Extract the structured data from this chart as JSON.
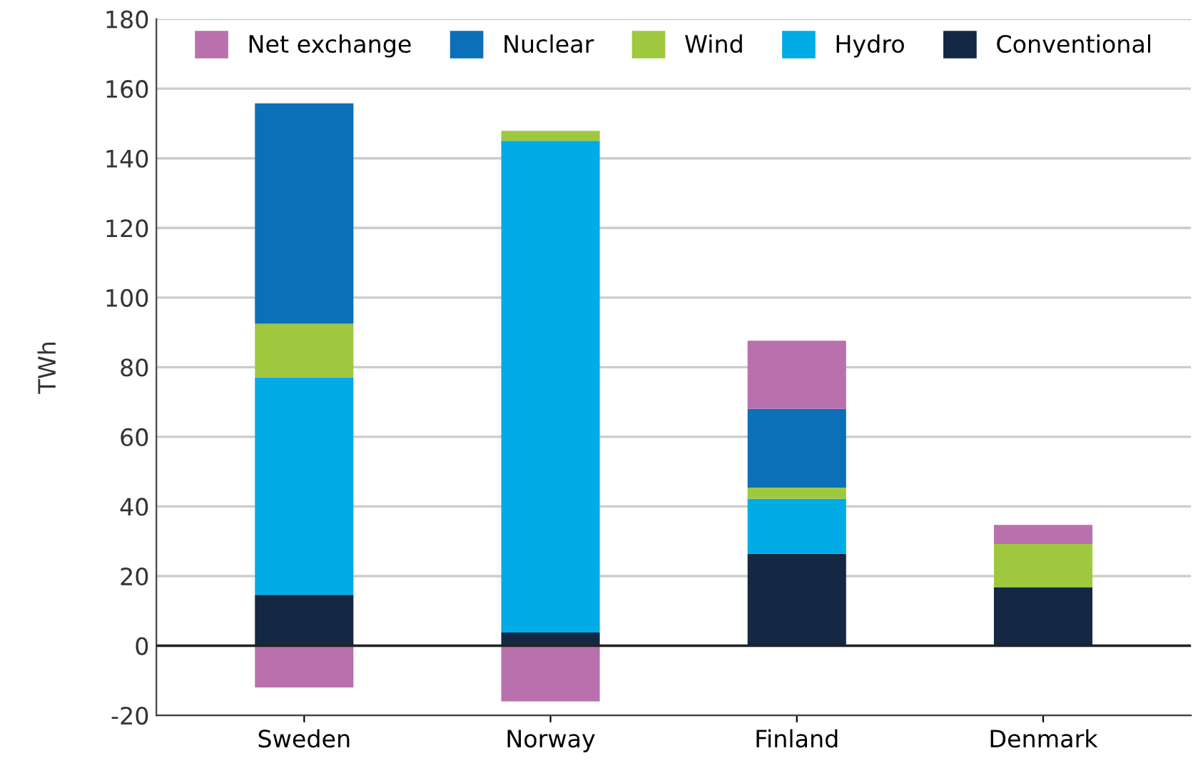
{
  "chart_data": {
    "type": "bar",
    "stacked": true,
    "ylabel": "TWh",
    "categories": [
      "Sweden",
      "Norway",
      "Finland",
      "Denmark"
    ],
    "series": [
      {
        "name": "Conventional",
        "color": "#142843",
        "values": [
          14.6,
          3.8,
          26.4,
          16.8
        ]
      },
      {
        "name": "Hydro",
        "color": "#00abe6",
        "values": [
          62.5,
          141.2,
          15.8,
          0
        ]
      },
      {
        "name": "Wind",
        "color": "#9fc83f",
        "values": [
          15.4,
          2.9,
          3.2,
          12.4
        ]
      },
      {
        "name": "Nuclear",
        "color": "#0b70b7",
        "values": [
          63.3,
          0,
          22.6,
          0
        ]
      },
      {
        "name": "Net exchange",
        "color": "#b971ad",
        "values": [
          -12,
          -16,
          19.6,
          5.5
        ]
      }
    ],
    "ylim": [
      -20,
      180
    ],
    "yticks": [
      -20,
      0,
      20,
      40,
      60,
      80,
      100,
      120,
      140,
      160,
      180
    ],
    "grid": "y",
    "legend": "top"
  }
}
